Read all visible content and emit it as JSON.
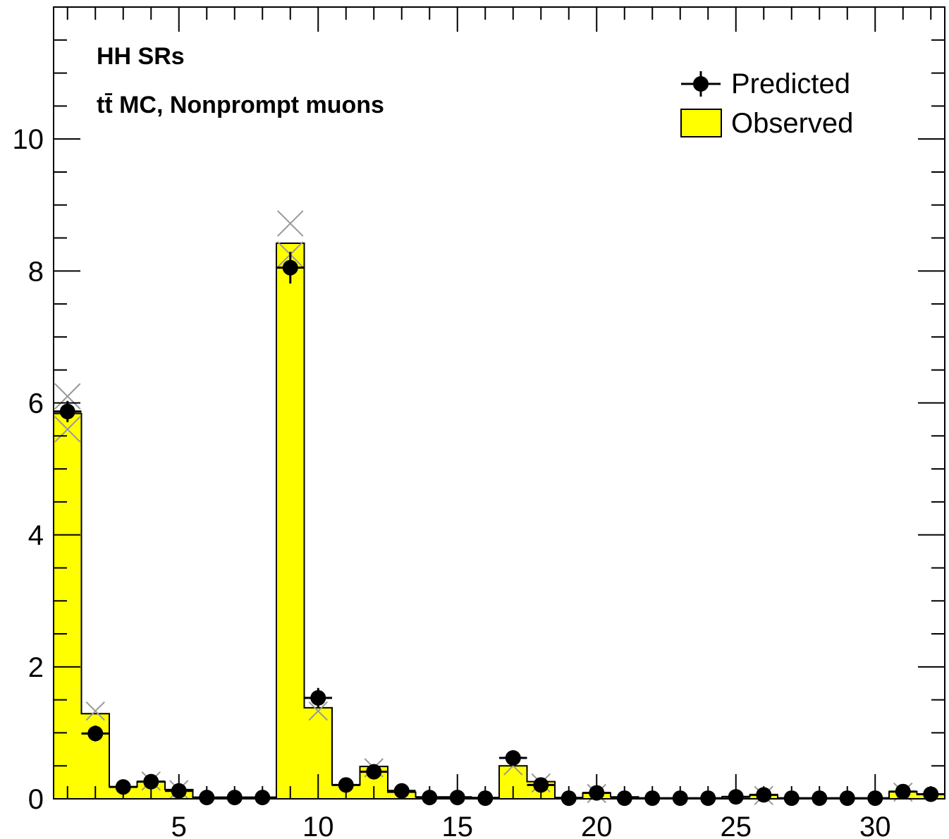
{
  "chart_data": {
    "type": "bar",
    "annotations": [
      "HH SRs",
      "tt̄ MC, Nonprompt muons"
    ],
    "legend": {
      "placement": "top-right",
      "entries": [
        {
          "label": "Predicted",
          "marker": "point-with-errorbars"
        },
        {
          "label": "Observed",
          "marker": "filled-box"
        }
      ]
    },
    "xlim": [
      0.5,
      32.5
    ],
    "ylim": [
      0,
      12
    ],
    "xticks": [
      5,
      10,
      15,
      20,
      25,
      30
    ],
    "yticks": [
      0,
      2,
      4,
      6,
      8,
      10
    ],
    "grid": false,
    "colors": {
      "observed_fill": "#ffff00",
      "observed_edge": "#000000",
      "predicted_marker": "#000000",
      "cross_marker": "#999999"
    },
    "bins": [
      1,
      2,
      3,
      4,
      5,
      6,
      7,
      8,
      9,
      10,
      11,
      12,
      13,
      14,
      15,
      16,
      17,
      18,
      19,
      20,
      21,
      22,
      23,
      24,
      25,
      26,
      27,
      28,
      29,
      30,
      31,
      32
    ],
    "series": [
      {
        "name": "Observed",
        "values": [
          5.84,
          1.29,
          0.18,
          0.26,
          0.14,
          0.02,
          0.02,
          0.02,
          8.42,
          1.38,
          0.21,
          0.49,
          0.1,
          0.03,
          0.03,
          0.02,
          0.5,
          0.26,
          0.02,
          0.09,
          0.03,
          0.01,
          0.01,
          0.01,
          0.03,
          0.06,
          0.01,
          0.01,
          0.01,
          0.01,
          0.11,
          0.07
        ]
      },
      {
        "name": "Predicted",
        "values": [
          5.87,
          0.99,
          0.18,
          0.26,
          0.12,
          0.02,
          0.02,
          0.02,
          8.05,
          1.53,
          0.21,
          0.41,
          0.12,
          0.02,
          0.02,
          0.01,
          0.62,
          0.21,
          0.01,
          0.09,
          0.01,
          0.01,
          0.01,
          0.01,
          0.03,
          0.06,
          0.01,
          0.01,
          0.01,
          0.01,
          0.11,
          0.07
        ],
        "errors": [
          0.16,
          0.12,
          0.03,
          0.03,
          0.02,
          0.005,
          0.005,
          0.005,
          0.24,
          0.15,
          0.03,
          0.05,
          0.02,
          0.005,
          0.005,
          0.005,
          0.06,
          0.03,
          0.005,
          0.02,
          0.005,
          0.005,
          0.005,
          0.005,
          0.005,
          0.01,
          0.005,
          0.005,
          0.005,
          0.005,
          0.02,
          0.02
        ]
      }
    ],
    "crosses": [
      {
        "bin": 1,
        "values": [
          6.1,
          5.6
        ]
      },
      {
        "bin": 2,
        "values": [
          1.33
        ]
      },
      {
        "bin": 4,
        "values": [
          0.27
        ]
      },
      {
        "bin": 5,
        "values": [
          0.14
        ]
      },
      {
        "bin": 9,
        "values": [
          8.72,
          8.25
        ]
      },
      {
        "bin": 10,
        "values": [
          1.33
        ]
      },
      {
        "bin": 12,
        "values": [
          0.47
        ]
      },
      {
        "bin": 17,
        "values": [
          0.5
        ]
      },
      {
        "bin": 18,
        "values": [
          0.24
        ]
      },
      {
        "bin": 20,
        "values": [
          0.08
        ]
      },
      {
        "bin": 26,
        "values": [
          0.05
        ]
      },
      {
        "bin": 31,
        "values": [
          0.1
        ]
      }
    ]
  }
}
